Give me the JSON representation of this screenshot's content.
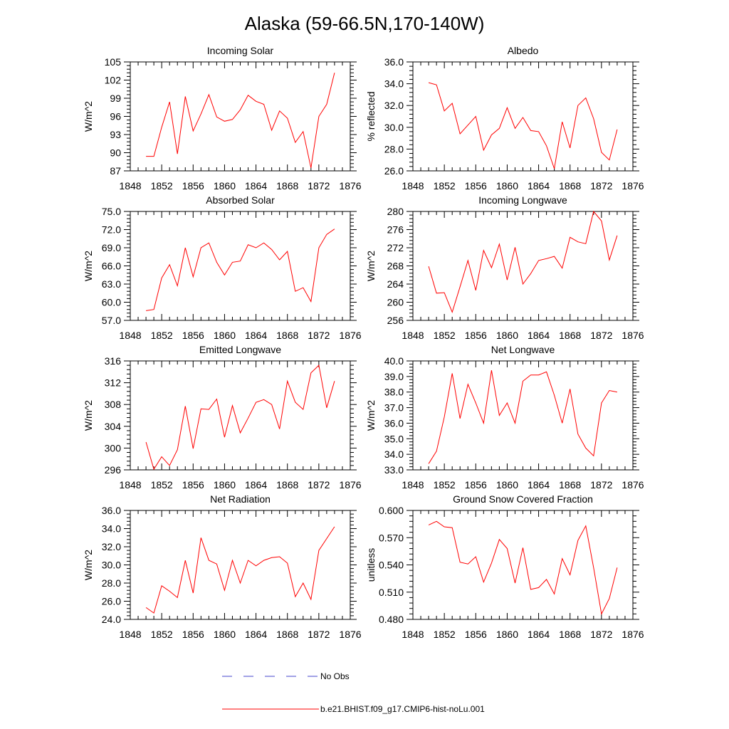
{
  "figure": {
    "title": "Alaska (59-66.5N,170-140W)"
  },
  "legend": {
    "obs_label": "No Obs",
    "obs_color": "#4444cc",
    "model_label": "b.e21.BHIST.f09_g17.CMIP6-hist-noLu.001",
    "model_color": "#ff0000"
  },
  "chart_data": [
    {
      "type": "line",
      "title": "Incoming Solar",
      "ylabel": "W/m^2",
      "xlim": [
        1848,
        1876
      ],
      "x_ticks": [
        "1848",
        "1852",
        "1856",
        "1860",
        "1864",
        "1868",
        "1872",
        "1876"
      ],
      "ylim": [
        87,
        105
      ],
      "y_ticks": [
        "87",
        "90",
        "93",
        "96",
        "99",
        "102",
        "105"
      ],
      "x": [
        1850,
        1851,
        1852,
        1853,
        1854,
        1855,
        1856,
        1857,
        1858,
        1859,
        1860,
        1861,
        1862,
        1863,
        1864,
        1865,
        1866,
        1867,
        1868,
        1869,
        1870,
        1871,
        1872,
        1873,
        1874
      ],
      "series": [
        {
          "name": "b.e21.BHIST.f09_g17.CMIP6-hist-noLu.001",
          "values": [
            89.4,
            89.4,
            94.2,
            98.4,
            89.8,
            99.3,
            93.6,
            96.4,
            99.6,
            95.9,
            95.2,
            95.5,
            97.1,
            99.5,
            98.5,
            98.0,
            93.7,
            96.9,
            95.7,
            91.7,
            93.5,
            87.5,
            96.0,
            98.0,
            103.2
          ]
        }
      ]
    },
    {
      "type": "line",
      "title": "Albedo",
      "ylabel": "% reflected",
      "xlim": [
        1848,
        1876
      ],
      "x_ticks": [
        "1848",
        "1852",
        "1856",
        "1860",
        "1864",
        "1868",
        "1872",
        "1876"
      ],
      "ylim": [
        26,
        36
      ],
      "y_ticks": [
        "26.0",
        "28.0",
        "30.0",
        "32.0",
        "34.0",
        "36.0"
      ],
      "x": [
        1850,
        1851,
        1852,
        1853,
        1854,
        1855,
        1856,
        1857,
        1858,
        1859,
        1860,
        1861,
        1862,
        1863,
        1864,
        1865,
        1866,
        1867,
        1868,
        1869,
        1870,
        1871,
        1872,
        1873,
        1874
      ],
      "series": [
        {
          "name": "b.e21.BHIST.f09_g17.CMIP6-hist-noLu.001",
          "values": [
            34.1,
            33.9,
            31.5,
            32.2,
            29.4,
            30.2,
            31.0,
            27.9,
            29.3,
            29.9,
            31.8,
            29.9,
            30.9,
            29.7,
            29.6,
            28.3,
            26.2,
            30.5,
            28.1,
            32.0,
            32.7,
            30.8,
            27.7,
            27.0,
            29.8
          ]
        }
      ]
    },
    {
      "type": "line",
      "title": "Absorbed Solar",
      "ylabel": "W/m^2",
      "xlim": [
        1848,
        1876
      ],
      "x_ticks": [
        "1848",
        "1852",
        "1856",
        "1860",
        "1864",
        "1868",
        "1872",
        "1876"
      ],
      "ylim": [
        57,
        75
      ],
      "y_ticks": [
        "57.0",
        "60.0",
        "63.0",
        "66.0",
        "69.0",
        "72.0",
        "75.0"
      ],
      "x": [
        1850,
        1851,
        1852,
        1853,
        1854,
        1855,
        1856,
        1857,
        1858,
        1859,
        1860,
        1861,
        1862,
        1863,
        1864,
        1865,
        1866,
        1867,
        1868,
        1869,
        1870,
        1871,
        1872,
        1873,
        1874
      ],
      "series": [
        {
          "name": "b.e21.BHIST.f09_g17.CMIP6-hist-noLu.001",
          "values": [
            58.6,
            58.8,
            64.0,
            66.2,
            62.7,
            69.0,
            64.2,
            69.0,
            69.8,
            66.6,
            64.5,
            66.6,
            66.8,
            69.5,
            69.0,
            69.8,
            68.7,
            67.0,
            68.4,
            61.8,
            62.4,
            60.1,
            69.0,
            71.2,
            72.1
          ]
        }
      ]
    },
    {
      "type": "line",
      "title": "Incoming Longwave",
      "ylabel": "W/m^2",
      "xlim": [
        1848,
        1876
      ],
      "x_ticks": [
        "1848",
        "1852",
        "1856",
        "1860",
        "1864",
        "1868",
        "1872",
        "1876"
      ],
      "ylim": [
        256,
        280
      ],
      "y_ticks": [
        "256",
        "260",
        "264",
        "268",
        "272",
        "276",
        "280"
      ],
      "x": [
        1850,
        1851,
        1852,
        1853,
        1854,
        1855,
        1856,
        1857,
        1858,
        1859,
        1860,
        1861,
        1862,
        1863,
        1864,
        1865,
        1866,
        1867,
        1868,
        1869,
        1870,
        1871,
        1872,
        1873,
        1874
      ],
      "series": [
        {
          "name": "b.e21.BHIST.f09_g17.CMIP6-hist-noLu.001",
          "values": [
            267.9,
            262.0,
            262.1,
            257.8,
            263.4,
            269.2,
            262.6,
            271.4,
            267.6,
            272.8,
            264.9,
            272.1,
            264.0,
            266.3,
            269.2,
            269.6,
            270.1,
            267.5,
            274.3,
            273.3,
            272.9,
            280.0,
            277.9,
            269.3,
            274.7
          ]
        }
      ]
    },
    {
      "type": "line",
      "title": "Emitted Longwave",
      "ylabel": "W/m^2",
      "xlim": [
        1848,
        1876
      ],
      "x_ticks": [
        "1848",
        "1852",
        "1856",
        "1860",
        "1864",
        "1868",
        "1872",
        "1876"
      ],
      "ylim": [
        296,
        316
      ],
      "y_ticks": [
        "296",
        "300",
        "304",
        "308",
        "312",
        "316"
      ],
      "x": [
        1850,
        1851,
        1852,
        1853,
        1854,
        1855,
        1856,
        1857,
        1858,
        1859,
        1860,
        1861,
        1862,
        1863,
        1864,
        1865,
        1866,
        1867,
        1868,
        1869,
        1870,
        1871,
        1872,
        1873,
        1874
      ],
      "series": [
        {
          "name": "b.e21.BHIST.f09_g17.CMIP6-hist-noLu.001",
          "values": [
            301.1,
            296.1,
            298.4,
            296.8,
            299.7,
            307.7,
            299.9,
            307.2,
            307.1,
            309.0,
            302.0,
            307.8,
            302.8,
            305.5,
            308.4,
            308.9,
            308.0,
            303.5,
            312.3,
            308.4,
            307.1,
            313.8,
            315.2,
            307.4,
            312.3
          ]
        }
      ]
    },
    {
      "type": "line",
      "title": "Net Longwave",
      "ylabel": "W/m^2",
      "xlim": [
        1848,
        1876
      ],
      "x_ticks": [
        "1848",
        "1852",
        "1856",
        "1860",
        "1864",
        "1868",
        "1872",
        "1876"
      ],
      "ylim": [
        33,
        40
      ],
      "y_ticks": [
        "33.0",
        "34.0",
        "35.0",
        "36.0",
        "37.0",
        "38.0",
        "39.0",
        "40.0"
      ],
      "x": [
        1850,
        1851,
        1852,
        1853,
        1854,
        1855,
        1856,
        1857,
        1858,
        1859,
        1860,
        1861,
        1862,
        1863,
        1864,
        1865,
        1866,
        1867,
        1868,
        1869,
        1870,
        1871,
        1872,
        1873,
        1874
      ],
      "series": [
        {
          "name": "b.e21.BHIST.f09_g17.CMIP6-hist-noLu.001",
          "values": [
            33.4,
            34.2,
            36.4,
            39.2,
            36.3,
            38.5,
            37.3,
            36.0,
            39.4,
            36.5,
            37.3,
            36.0,
            38.7,
            39.1,
            39.1,
            39.3,
            37.8,
            36.0,
            38.2,
            35.3,
            34.4,
            33.9,
            37.3,
            38.1,
            38.0
          ]
        }
      ]
    },
    {
      "type": "line",
      "title": "Net Radiation",
      "ylabel": "W/m^2",
      "xlim": [
        1848,
        1876
      ],
      "x_ticks": [
        "1848",
        "1852",
        "1856",
        "1860",
        "1864",
        "1868",
        "1872",
        "1876"
      ],
      "ylim": [
        24,
        36
      ],
      "y_ticks": [
        "24.0",
        "26.0",
        "28.0",
        "30.0",
        "32.0",
        "34.0",
        "36.0"
      ],
      "x": [
        1850,
        1851,
        1852,
        1853,
        1854,
        1855,
        1856,
        1857,
        1858,
        1859,
        1860,
        1861,
        1862,
        1863,
        1864,
        1865,
        1866,
        1867,
        1868,
        1869,
        1870,
        1871,
        1872,
        1873,
        1874
      ],
      "series": [
        {
          "name": "b.e21.BHIST.f09_g17.CMIP6-hist-noLu.001",
          "values": [
            25.3,
            24.7,
            27.7,
            27.1,
            26.4,
            30.5,
            26.9,
            33.0,
            30.5,
            30.1,
            27.2,
            30.5,
            28.0,
            30.5,
            29.9,
            30.5,
            30.8,
            30.9,
            30.2,
            26.5,
            28.0,
            26.2,
            31.6,
            32.9,
            34.2
          ]
        }
      ]
    },
    {
      "type": "line",
      "title": "Ground Snow Covered Fraction",
      "ylabel": "unitless",
      "xlim": [
        1848,
        1876
      ],
      "x_ticks": [
        "1848",
        "1852",
        "1856",
        "1860",
        "1864",
        "1868",
        "1872",
        "1876"
      ],
      "ylim": [
        0.48,
        0.6
      ],
      "y_ticks": [
        "0.480",
        "0.510",
        "0.540",
        "0.570",
        "0.600"
      ],
      "x": [
        1850,
        1851,
        1852,
        1853,
        1854,
        1855,
        1856,
        1857,
        1858,
        1859,
        1860,
        1861,
        1862,
        1863,
        1864,
        1865,
        1866,
        1867,
        1868,
        1869,
        1870,
        1871,
        1872,
        1873,
        1874
      ],
      "series": [
        {
          "name": "b.e21.BHIST.f09_g17.CMIP6-hist-noLu.001",
          "values": [
            0.584,
            0.588,
            0.582,
            0.581,
            0.543,
            0.541,
            0.549,
            0.521,
            0.542,
            0.568,
            0.558,
            0.52,
            0.559,
            0.513,
            0.515,
            0.524,
            0.508,
            0.547,
            0.529,
            0.567,
            0.583,
            0.537,
            0.486,
            0.503,
            0.537
          ]
        }
      ]
    }
  ]
}
